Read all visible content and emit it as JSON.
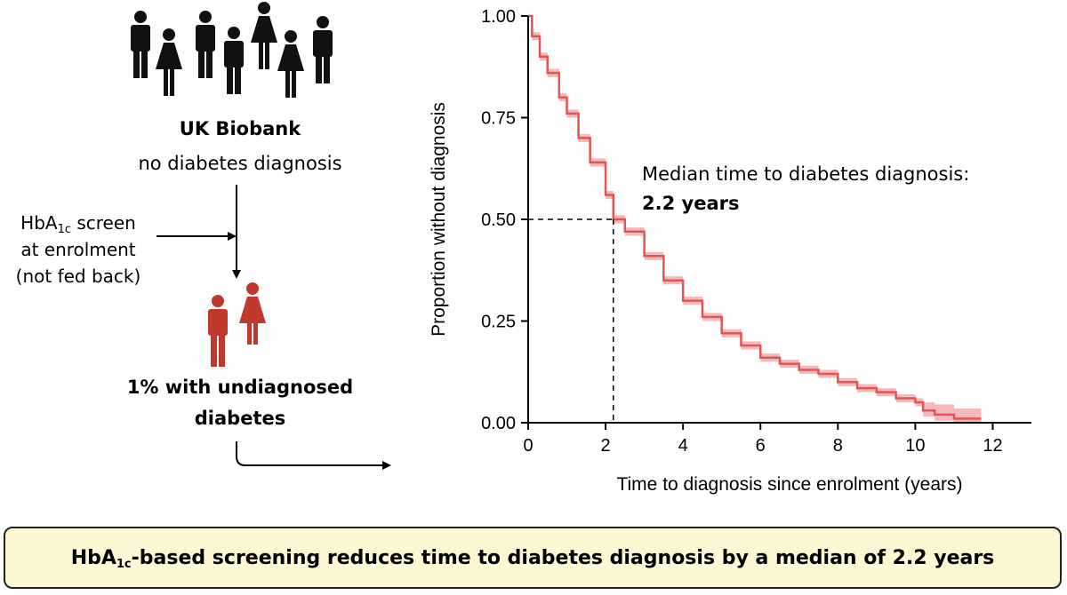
{
  "flow": {
    "cohort_title": "UK Biobank",
    "cohort_subtitle": "no diabetes diagnosis",
    "screen_prefix": "HbA",
    "screen_sub": "1c",
    "screen_suffix": " screen",
    "screen_line2": "at enrolment",
    "screen_line3": "(not fed back)",
    "result_line1": "1% with undiagnosed",
    "result_line2": "diabetes",
    "crowd_icons": [
      "male-person-icon",
      "female-person-icon"
    ],
    "highlight_color": "#c0392b"
  },
  "banner": {
    "prefix": "HbA",
    "sub": "1c",
    "suffix": "-based screening reduces time to diabetes diagnosis by a median of 2.2 years"
  },
  "chart_data": {
    "type": "line",
    "xlabel": "Time to diagnosis since enrolment (years)",
    "ylabel": "Proportion without diagnosis",
    "xlim": [
      0,
      13
    ],
    "ylim": [
      0,
      1
    ],
    "x_ticks": [
      "0",
      "2",
      "4",
      "6",
      "8",
      "10",
      "12"
    ],
    "y_ticks": [
      "0.00",
      "0.25",
      "0.50",
      "0.75",
      "1.00"
    ],
    "line_color": "#e05555",
    "band_color": "#f4b9b9",
    "series": [
      {
        "x": [
          0,
          0.1,
          0.3,
          0.5,
          0.8,
          1.0,
          1.3,
          1.6,
          2.0,
          2.2,
          2.5,
          3.0,
          3.5,
          4.0,
          4.5,
          5.0,
          5.5,
          6.0,
          6.5,
          7.0,
          7.5,
          8.0,
          8.5,
          9.0,
          9.5,
          10.0,
          10.2,
          10.5,
          11.0,
          11.7
        ],
        "y": [
          1.0,
          0.95,
          0.9,
          0.86,
          0.8,
          0.76,
          0.7,
          0.64,
          0.56,
          0.5,
          0.47,
          0.41,
          0.35,
          0.3,
          0.26,
          0.22,
          0.19,
          0.16,
          0.145,
          0.13,
          0.12,
          0.1,
          0.085,
          0.075,
          0.06,
          0.05,
          0.03,
          0.02,
          0.01,
          0.01
        ],
        "lower": [
          1.0,
          0.94,
          0.89,
          0.85,
          0.79,
          0.75,
          0.69,
          0.63,
          0.55,
          0.49,
          0.46,
          0.4,
          0.34,
          0.29,
          0.25,
          0.21,
          0.18,
          0.15,
          0.135,
          0.12,
          0.11,
          0.09,
          0.075,
          0.065,
          0.05,
          0.04,
          0.015,
          0.005,
          0.0,
          0.0
        ],
        "upper": [
          1.0,
          0.96,
          0.91,
          0.87,
          0.81,
          0.77,
          0.71,
          0.65,
          0.57,
          0.51,
          0.48,
          0.42,
          0.36,
          0.31,
          0.27,
          0.23,
          0.2,
          0.17,
          0.155,
          0.14,
          0.13,
          0.11,
          0.095,
          0.085,
          0.07,
          0.06,
          0.05,
          0.045,
          0.035,
          0.035
        ]
      }
    ],
    "median_x": 2.2,
    "median_y": 0.5,
    "annotation_line1": "Median time to diabetes diagnosis:",
    "annotation_line2": "2.2 years"
  }
}
